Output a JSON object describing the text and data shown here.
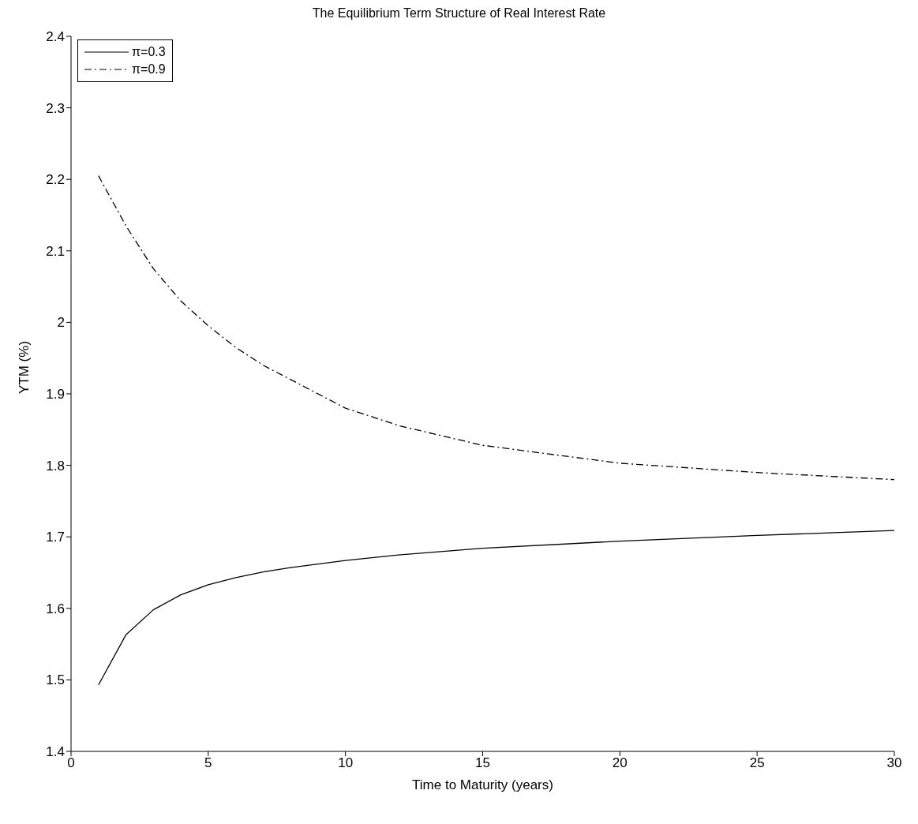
{
  "chart_data": {
    "type": "line",
    "title": "The Equilibrium Term Structure of Real Interest Rate",
    "xlabel": "Time to Maturity (years)",
    "ylabel": "YTM (%)",
    "x": [
      1,
      2,
      3,
      4,
      5,
      6,
      7,
      8,
      10,
      12,
      15,
      20,
      25,
      30
    ],
    "series": [
      {
        "name": "π=0.3",
        "color": "#000000",
        "line_style": "solid",
        "values": [
          1.493,
          1.563,
          1.598,
          1.619,
          1.633,
          1.643,
          1.651,
          1.657,
          1.667,
          1.675,
          1.684,
          1.694,
          1.702,
          1.709
        ]
      },
      {
        "name": "π=0.9",
        "color": "#000000",
        "line_style": "dashed",
        "values": [
          2.205,
          2.135,
          2.075,
          2.03,
          1.995,
          1.965,
          1.94,
          1.92,
          1.88,
          1.855,
          1.828,
          1.803,
          1.79,
          1.78
        ]
      }
    ],
    "xlim": [
      0,
      30
    ],
    "xticks": [
      0,
      5,
      10,
      15,
      20,
      25,
      30
    ],
    "ylim": [
      1.4,
      2.4
    ],
    "yticks": [
      1.4,
      1.5,
      1.6,
      1.7,
      1.8,
      1.9,
      2,
      2.1,
      2.2,
      2.3,
      2.4
    ],
    "legend": "top left",
    "grid": false,
    "marker": "none"
  }
}
